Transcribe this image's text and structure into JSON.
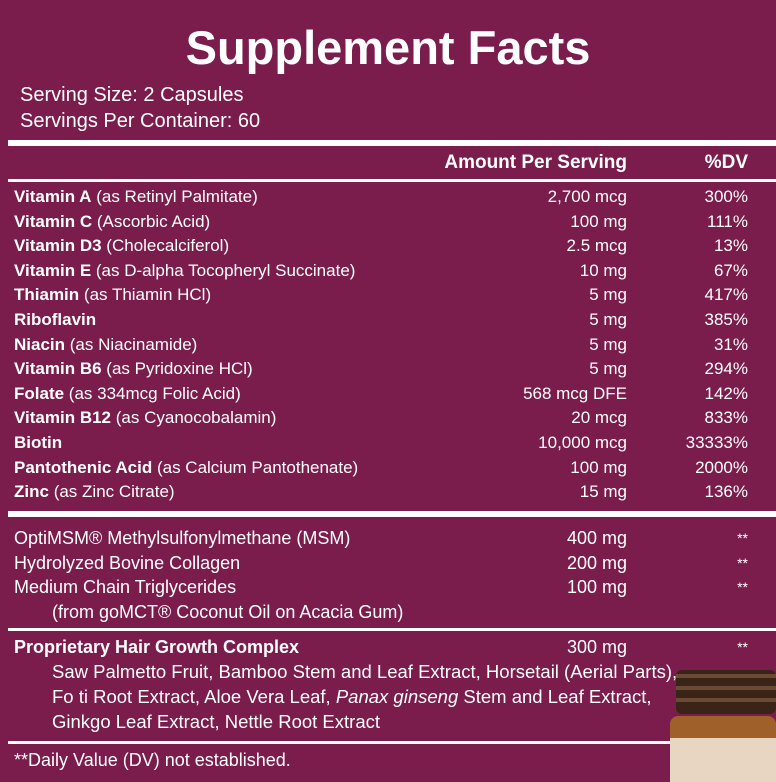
{
  "title": "Supplement Facts",
  "serving_size": "Serving Size: 2 Capsules",
  "servings_per_container": "Servings Per Container: 60",
  "header": {
    "amount": "Amount Per Serving",
    "dv": "%DV"
  },
  "vitamins": [
    {
      "name": "Vitamin A",
      "detail": "(as Retinyl Palmitate)",
      "amount": "2,700 mcg",
      "dv": "300%"
    },
    {
      "name": "Vitamin C",
      "detail": "(Ascorbic Acid)",
      "amount": "100 mg",
      "dv": "111%"
    },
    {
      "name": "Vitamin D3",
      "detail": "(Cholecalciferol)",
      "amount": "2.5 mcg",
      "dv": "13%"
    },
    {
      "name": "Vitamin E",
      "detail": "(as D-alpha Tocopheryl Succinate)",
      "amount": "10 mg",
      "dv": "67%"
    },
    {
      "name": "Thiamin",
      "detail": "(as Thiamin HCl)",
      "amount": "5 mg",
      "dv": "417%"
    },
    {
      "name": "Riboflavin",
      "amount": "5 mg",
      "dv": "385%"
    },
    {
      "name": "Niacin",
      "detail": "(as Niacinamide)",
      "amount": "5 mg",
      "dv": "31%"
    },
    {
      "name": "Vitamin B6",
      "detail": "(as Pyridoxine HCl)",
      "amount": "5 mg",
      "dv": "294%"
    },
    {
      "name": "Folate",
      "detail": "(as 334mcg Folic Acid)",
      "amount": "568 mcg DFE",
      "dv": "142%"
    },
    {
      "name": "Vitamin B12",
      "detail": "(as Cyanocobalamin)",
      "amount": "20 mcg",
      "dv": "833%"
    },
    {
      "name": "Biotin",
      "amount": "10,000 mcg",
      "dv": "33333%"
    },
    {
      "name": "Pantothenic Acid",
      "detail": "(as Calcium Pantothenate)",
      "amount": "100 mg",
      "dv": "2000%"
    },
    {
      "name": "Zinc",
      "detail": "(as Zinc Citrate)",
      "amount": "15 mg",
      "dv": "136%"
    }
  ],
  "other": [
    {
      "name": "OptiMSM® Methylsulfonylmethane (MSM)",
      "amount": "400 mg",
      "dv": "**"
    },
    {
      "name": "Hydrolyzed Bovine Collagen",
      "amount": "200 mg",
      "dv": "**"
    },
    {
      "name": "Medium Chain Triglycerides",
      "amount": "100 mg",
      "dv": "**",
      "note": "(from goMCT® Coconut Oil on Acacia Gum)"
    }
  ],
  "blend": {
    "name": "Proprietary Hair Growth Complex",
    "amount": "300 mg",
    "dv": "**",
    "ingredients": [
      "Saw Palmetto Fruit, Bamboo Stem and Leaf Extract, Horsetail (Aerial Parts), Fo ti Root Extract, Aloe Vera Leaf, ",
      "Panax ginseng",
      " Stem and Leaf Extract, Ginkgo Leaf Extract, Nettle Root Extract"
    ]
  },
  "footnote": "**Daily Value (DV) not established."
}
